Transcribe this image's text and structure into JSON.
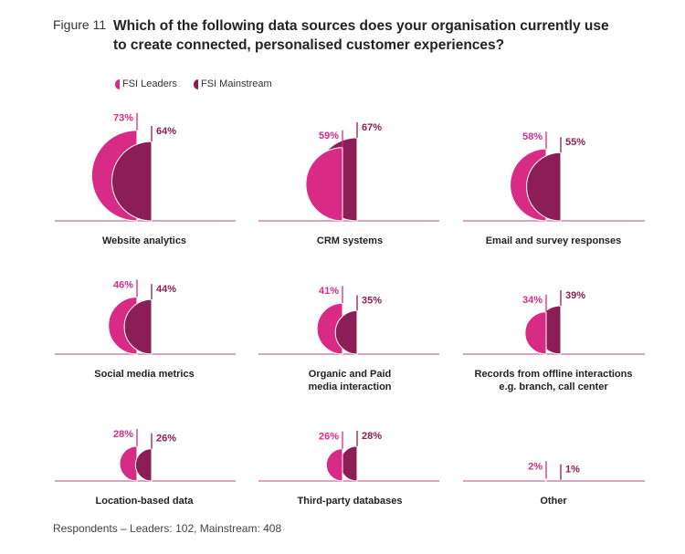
{
  "figure_label": "Figure 11",
  "title": "Which of the following data sources does your organisation currently use to create connected, personalised customer experiences?",
  "footnote": "Respondents – Leaders: 102, Mainstream: 408",
  "colors": {
    "leaders": "#d82b85",
    "mainstream": "#8b1e55",
    "baseline": "#c88aaa"
  },
  "chart_data": {
    "type": "semicircle-comparison",
    "unit": "%",
    "legend": {
      "placement": "top-left",
      "entries": [
        "FSI Leaders",
        "FSI Mainstream"
      ]
    },
    "categories": [
      [
        "Website analytics"
      ],
      [
        "CRM systems"
      ],
      [
        "Email and survey responses"
      ],
      [
        "Social media metrics"
      ],
      [
        "Organic and Paid",
        "media interaction"
      ],
      [
        "Records from offline interactions",
        "e.g. branch, call center"
      ],
      [
        "Location-based data"
      ],
      [
        "Third-party databases"
      ],
      [
        "Other"
      ]
    ],
    "series": [
      {
        "name": "FSI Leaders",
        "values": [
          73,
          59,
          58,
          46,
          41,
          34,
          28,
          26,
          2
        ]
      },
      {
        "name": "FSI Mainstream",
        "values": [
          64,
          67,
          55,
          44,
          35,
          39,
          26,
          28,
          1
        ]
      }
    ]
  }
}
